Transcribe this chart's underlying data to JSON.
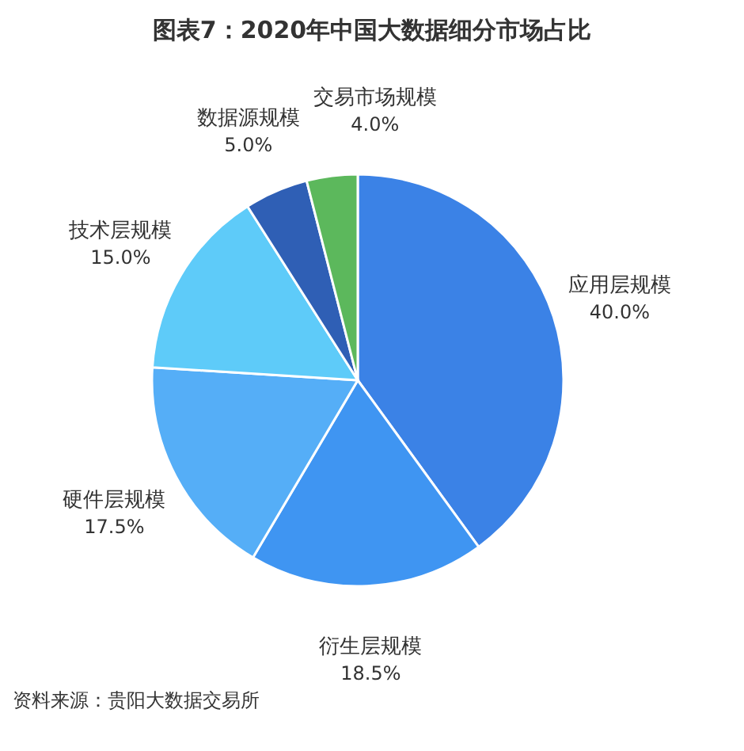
{
  "chart_data": {
    "type": "pie",
    "title": "图表7：2020年中国大数据细分市场占比",
    "categories": [
      "应用层规模",
      "衍生层规模",
      "硬件层规模",
      "技术层规模",
      "数据源规模",
      "交易市场规模"
    ],
    "values": [
      40,
      18.5,
      17.5,
      15,
      5,
      4
    ],
    "value_labels": [
      "40.0%",
      "18.5%",
      "17.5%",
      "15.0%",
      "5.0%",
      "4.0%"
    ],
    "colors": [
      "#3b82e6",
      "#3f95f2",
      "#55aef7",
      "#5ecbf9",
      "#2f5fb5",
      "#5cb85c"
    ],
    "annotations": [
      "资料来源：贵阳大数据交易所"
    ]
  }
}
